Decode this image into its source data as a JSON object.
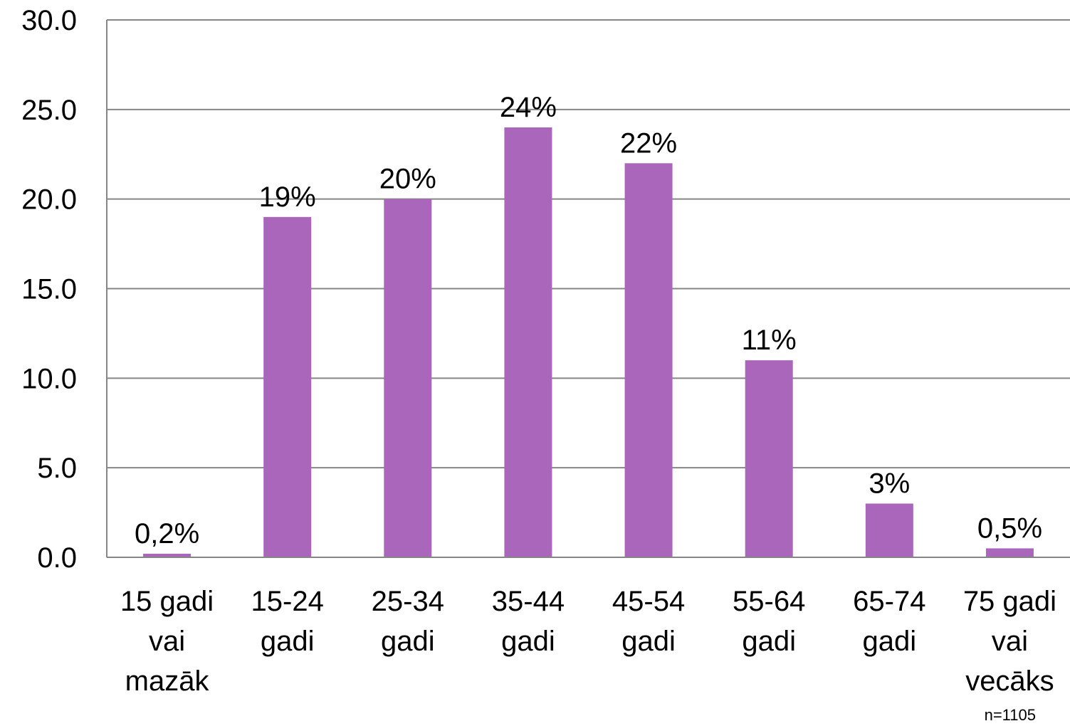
{
  "chart_data": {
    "type": "bar",
    "categories": [
      [
        "15 gadi",
        "vai",
        "mazāk"
      ],
      [
        "15-24",
        "gadi"
      ],
      [
        "25-34",
        "gadi"
      ],
      [
        "35-44",
        "gadi"
      ],
      [
        "45-54",
        "gadi"
      ],
      [
        "55-64",
        "gadi"
      ],
      [
        "65-74",
        "gadi"
      ],
      [
        "75 gadi",
        "vai",
        "vecāks"
      ]
    ],
    "values": [
      0.2,
      19,
      20,
      24,
      22,
      11,
      3,
      0.5
    ],
    "data_labels": [
      "0,2%",
      "19%",
      "20%",
      "24%",
      "22%",
      "11%",
      "3%",
      "0,5%"
    ],
    "y_ticks": [
      "0.0",
      "5.0",
      "10.0",
      "15.0",
      "20.0",
      "25.0",
      "30.0"
    ],
    "ylim": [
      0,
      30
    ],
    "grid": true,
    "bar_color": "#AA66BB",
    "note": "n=1105"
  }
}
